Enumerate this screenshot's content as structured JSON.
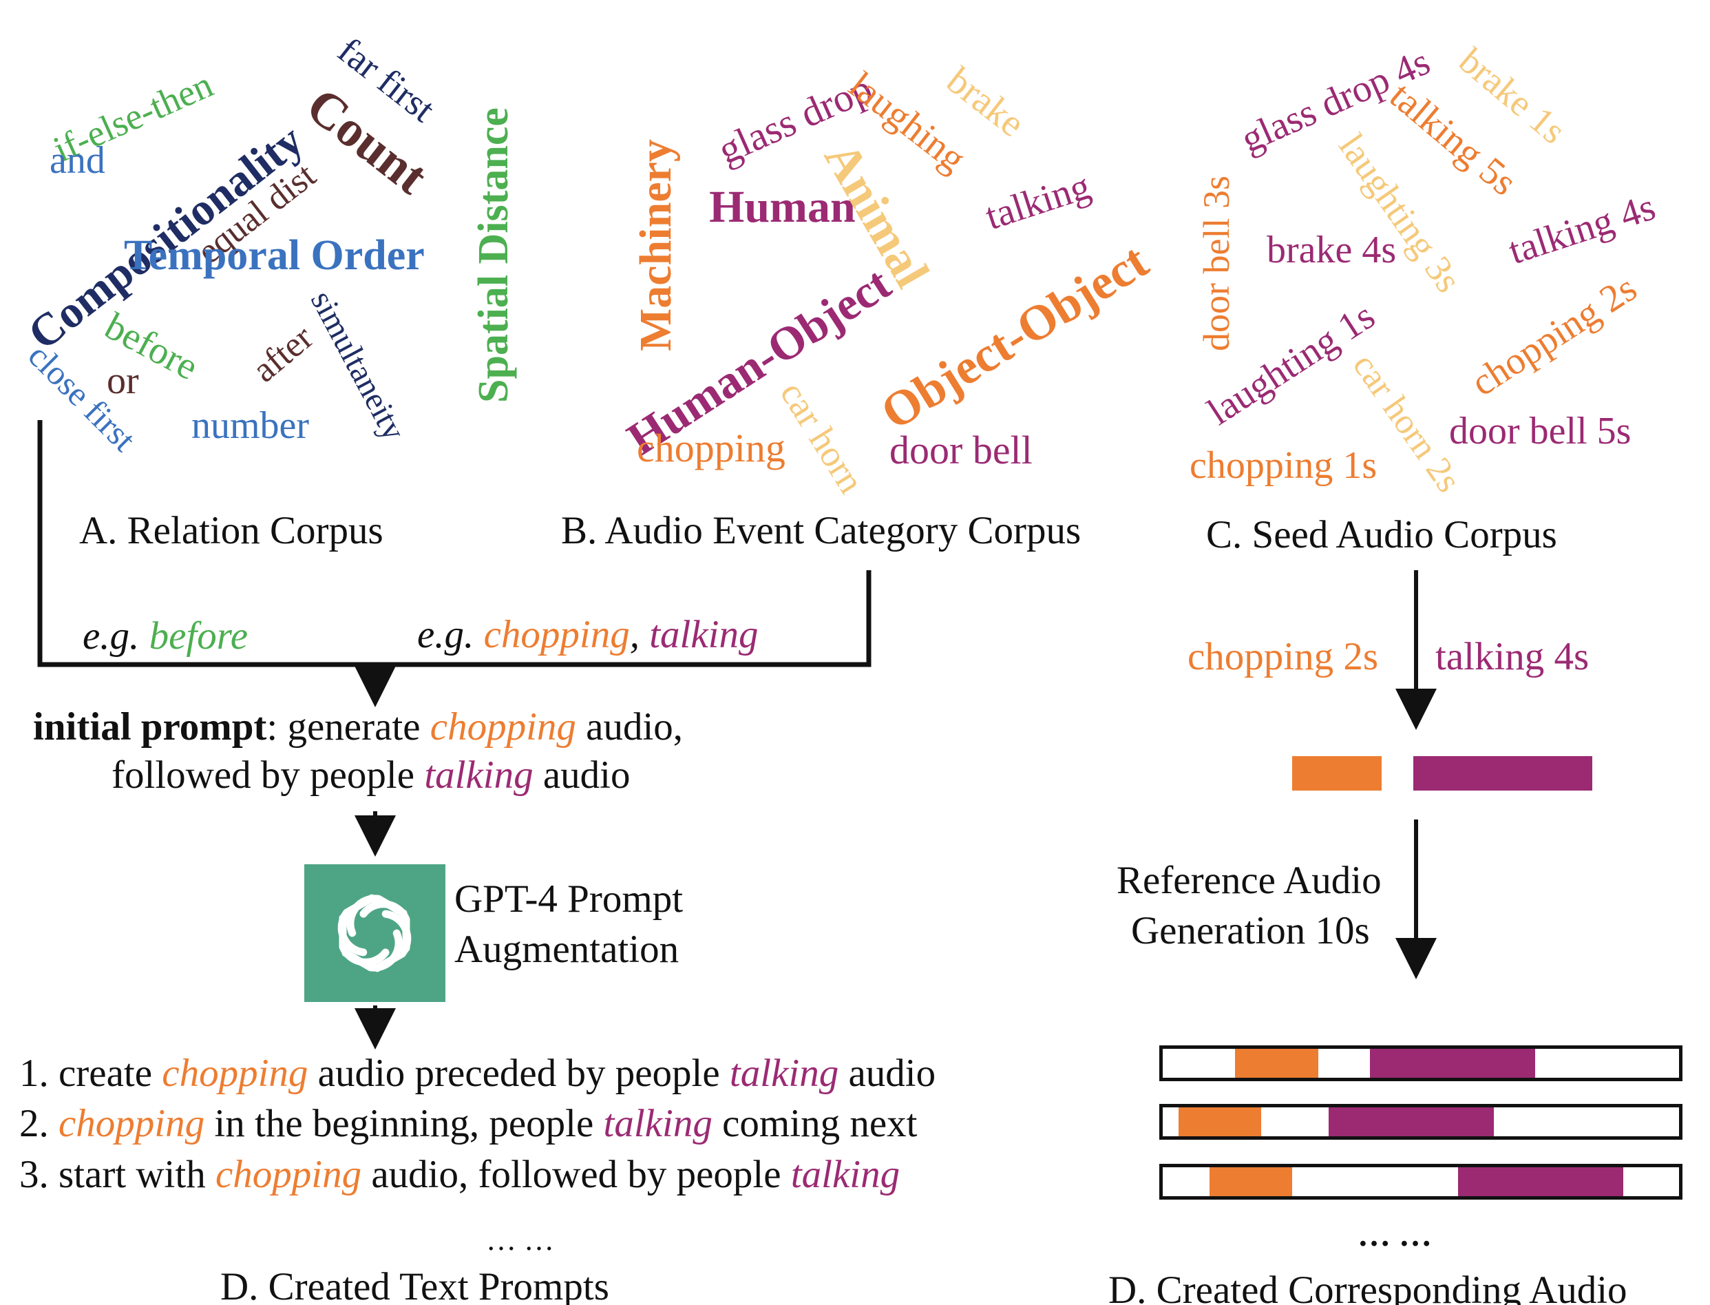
{
  "colors": {
    "orange": "#ed7d31",
    "purple": "#9b2a73",
    "green": "#4caf50",
    "blue": "#3a72bf",
    "navy": "#1f2d64",
    "brown": "#5a2e2e",
    "sand": "#f5c97a",
    "gpt_green": "#4ea585",
    "line": "#111111"
  },
  "relation_corpus": {
    "caption": "A. Relation Corpus",
    "words": [
      "if-else-then",
      "and",
      "Compositionality",
      "equal dist",
      "Count",
      "far first",
      "Spatial Distance",
      "Temporal Order",
      "before",
      "or",
      "after",
      "simultaneity",
      "close first",
      "number"
    ],
    "example_prefix": "e.g.",
    "example": "before"
  },
  "category_corpus": {
    "caption": "B.  Audio Event Category Corpus",
    "words": [
      "glass drop",
      "laughing",
      "brake",
      "Machinery",
      "Human",
      "Animal",
      "talking",
      "Human-Object",
      "Object-Object",
      "car horn",
      "chopping",
      "door bell"
    ],
    "example_prefix": "e.g.",
    "example_1": "chopping",
    "example_sep": ",",
    "example_2": "talking"
  },
  "seed_corpus": {
    "caption": "C. Seed Audio Corpus",
    "words": [
      "glass drop 4s",
      "brake 1s",
      "talking 5s",
      "door bell 3s",
      "laughting 3s",
      "talking 4s",
      "brake 4s",
      "chopping 2s",
      "laughting 1s",
      "car horn 2s",
      "door bell 5s",
      "chopping 1s"
    ],
    "selected_1": "chopping 2s",
    "selected_2": "talking 4s"
  },
  "initial_prompt": {
    "label": "initial prompt",
    "colon_text": ": generate",
    "word_1": "chopping",
    "mid_text": "audio,",
    "line2_prefix": "followed by people",
    "word_2": "talking",
    "line2_suffix": "audio"
  },
  "gpt": {
    "icon": "openai-logo-icon",
    "line1": "GPT-4 Prompt",
    "line2": "Augmentation"
  },
  "reference": {
    "line1": "Reference Audio",
    "line2": "Generation 10s"
  },
  "created_prompts": {
    "items": [
      {
        "num": "1.",
        "pre": "create",
        "w1": "chopping",
        "mid": "audio preceded by people",
        "w2": "talking",
        "post": "audio"
      },
      {
        "num": "2.",
        "pre": "",
        "w1": "chopping",
        "mid": "in the beginning, people",
        "w2": "talking",
        "post": "coming next"
      },
      {
        "num": "3.",
        "pre": "start with",
        "w1": "chopping",
        "mid": "audio, followed by people",
        "w2": "talking",
        "post": ""
      }
    ],
    "ellipsis": "… …",
    "caption": "D. Created Text Prompts"
  },
  "created_audio": {
    "seed_segments": [
      {
        "label": "chopping",
        "duration_s": 2
      },
      {
        "label": "talking",
        "duration_s": 4
      }
    ],
    "total_duration_s": 10,
    "tracks": [
      {
        "chopping": [
          1.4,
          3.0
        ],
        "talking": [
          4.0,
          7.2
        ]
      },
      {
        "chopping": [
          0.3,
          1.9
        ],
        "talking": [
          3.2,
          6.4
        ]
      },
      {
        "chopping": [
          0.9,
          2.5
        ],
        "talking": [
          5.7,
          8.9
        ]
      }
    ],
    "ellipsis": "… …",
    "caption": "D. Created Corresponding Audio"
  }
}
